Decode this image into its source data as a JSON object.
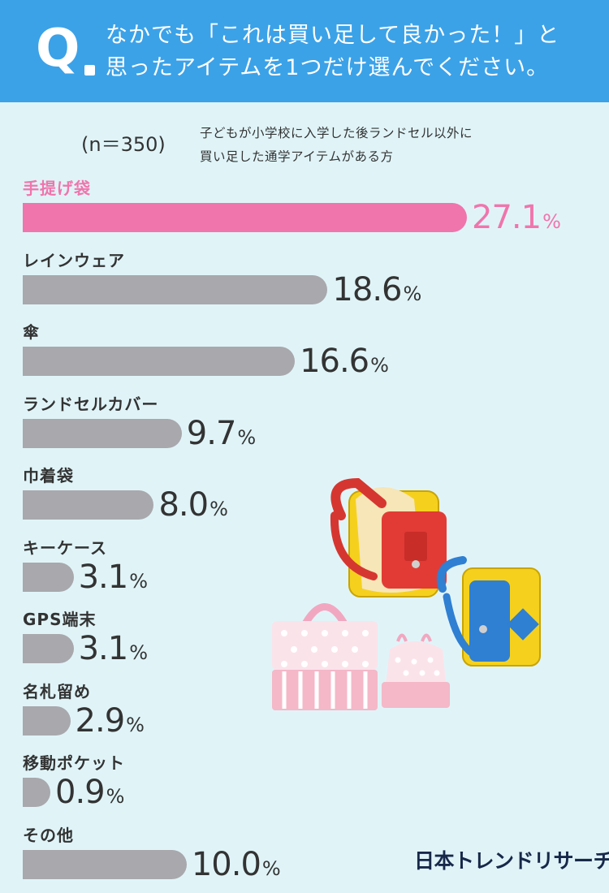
{
  "header": {
    "q_mark": "Q",
    "question": "なかでも「これは買い足して良かった！」と\n思ったアイテムを1つだけ選んでください。"
  },
  "sample": {
    "n_label": "(n＝350)",
    "description": "子どもが小学校に入学した後ランドセル以外に\n買い足した通学アイテムがある方"
  },
  "colors": {
    "header_bg": "#3ba2e8",
    "background": "#e0f4f8",
    "highlight": "#f075ac",
    "bar_gray": "#a8a8ad"
  },
  "chart_data": {
    "type": "bar",
    "orientation": "horizontal",
    "categories": [
      "手提げ袋",
      "レインウェア",
      "傘",
      "ランドセルカバー",
      "巾着袋",
      "キーケース",
      "GPS端末",
      "名札留め",
      "移動ポケット",
      "その他"
    ],
    "values": [
      27.1,
      18.6,
      16.6,
      9.7,
      8.0,
      3.1,
      3.1,
      2.9,
      0.9,
      10.0
    ],
    "value_labels": [
      "27.1",
      "18.6",
      "16.6",
      "9.7",
      "8.0",
      "3.1",
      "3.1",
      "2.9",
      "0.9",
      "10.0"
    ],
    "unit": "%",
    "highlight_index": 0
  },
  "logo": {
    "text": "日本トレンドリサーチ"
  },
  "illustration": {
    "icon": "school-bags-illustration"
  }
}
